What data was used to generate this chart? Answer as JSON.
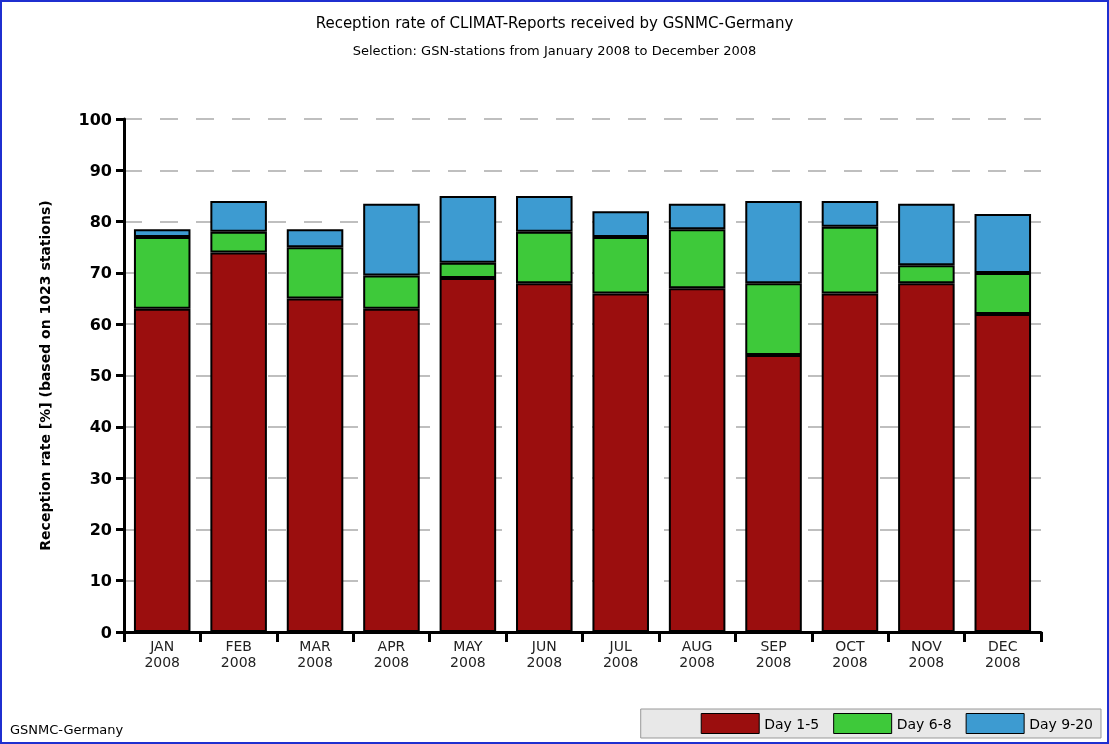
{
  "chart_data": {
    "type": "bar",
    "stacked": true,
    "title": "Reception rate of CLIMAT-Reports received by GSNMC-Germany",
    "subtitle": "Selection: GSN-stations from January 2008 to December 2008",
    "ylabel": "Reception rate [%] (based on 1023 stations)",
    "annotations": [
      "GSNMC-Germany"
    ],
    "categories": [
      "JAN\n2008",
      "FEB\n2008",
      "MAR\n2008",
      "APR\n2008",
      "MAY\n2008",
      "JUN\n2008",
      "JUL\n2008",
      "AUG\n2008",
      "SEP\n2008",
      "OCT\n2008",
      "NOV\n2008",
      "DEC\n2008"
    ],
    "series": [
      {
        "name": "Day 1-5",
        "color": "#9b0e0e",
        "values": [
          63,
          74,
          65,
          63,
          69,
          68,
          66,
          67,
          54,
          66,
          68,
          62
        ]
      },
      {
        "name": "Day 6-8",
        "color": "#3ec93a",
        "values": [
          14,
          4,
          10,
          6.5,
          3,
          10,
          11,
          11.5,
          14,
          13,
          3.5,
          8
        ]
      },
      {
        "name": "Day 9-20",
        "color": "#3d9bd1",
        "values": [
          1.5,
          6,
          3.5,
          14,
          13,
          7,
          5,
          5,
          16,
          5,
          12,
          11.5
        ]
      }
    ],
    "ylim": [
      0,
      100
    ],
    "yticks": [
      0,
      10,
      20,
      30,
      40,
      50,
      60,
      70,
      80,
      90,
      100
    ],
    "grid": "y",
    "legend": "bottom right"
  }
}
